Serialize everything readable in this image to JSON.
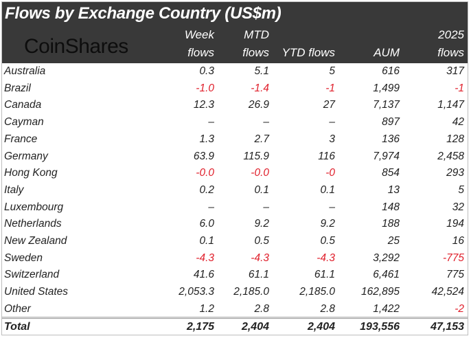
{
  "chart_data": {
    "type": "table",
    "title": "Flows by Exchange Country (US$m)",
    "brand": "CoinShares",
    "columns": [
      {
        "line1": "Week",
        "line2": "flows"
      },
      {
        "line1": "MTD",
        "line2": "flows"
      },
      {
        "line1": "",
        "line2": "YTD flows"
      },
      {
        "line1": "",
        "line2": "AUM"
      },
      {
        "line1": "2025",
        "line2": "flows"
      }
    ],
    "rows": [
      {
        "country": "Australia",
        "values": [
          "0.3",
          "5.1",
          "5",
          "616",
          "317"
        ]
      },
      {
        "country": "Brazil",
        "values": [
          "-1.0",
          "-1.4",
          "-1",
          "1,499",
          "-1"
        ]
      },
      {
        "country": "Canada",
        "values": [
          "12.3",
          "26.9",
          "27",
          "7,137",
          "1,147"
        ]
      },
      {
        "country": "Cayman",
        "values": [
          "–",
          "–",
          "–",
          "897",
          "42"
        ]
      },
      {
        "country": "France",
        "values": [
          "1.3",
          "2.7",
          "3",
          "136",
          "128"
        ]
      },
      {
        "country": "Germany",
        "values": [
          "63.9",
          "115.9",
          "116",
          "7,974",
          "2,458"
        ]
      },
      {
        "country": "Hong Kong",
        "values": [
          "-0.0",
          "-0.0",
          "-0",
          "854",
          "293"
        ]
      },
      {
        "country": "Italy",
        "values": [
          "0.2",
          "0.1",
          "0.1",
          "13",
          "5"
        ]
      },
      {
        "country": "Luxembourg",
        "values": [
          "–",
          "–",
          "–",
          "148",
          "32"
        ]
      },
      {
        "country": "Netherlands",
        "values": [
          "6.0",
          "9.2",
          "9.2",
          "188",
          "194"
        ]
      },
      {
        "country": "New Zealand",
        "values": [
          "0.1",
          "0.5",
          "0.5",
          "25",
          "16"
        ]
      },
      {
        "country": "Sweden",
        "values": [
          "-4.3",
          "-4.3",
          "-4.3",
          "3,292",
          "-775"
        ]
      },
      {
        "country": "Switzerland",
        "values": [
          "41.6",
          "61.1",
          "61.1",
          "6,461",
          "775"
        ]
      },
      {
        "country": "United States",
        "values": [
          "2,053.3",
          "2,185.0",
          "2,185.0",
          "162,895",
          "42,524"
        ]
      },
      {
        "country": "Other",
        "values": [
          "1.2",
          "2.8",
          "2.8",
          "1,422",
          "-2"
        ]
      }
    ],
    "total": {
      "country": "Total",
      "values": [
        "2,175",
        "2,404",
        "2,404",
        "193,556",
        "47,153"
      ]
    },
    "colors": {
      "header_bg": "#393939",
      "negative": "#e0202c"
    }
  }
}
